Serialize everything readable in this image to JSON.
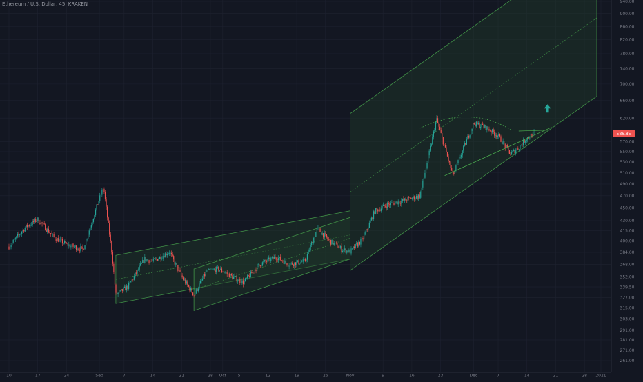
{
  "header": {
    "symbol_title": "Ethereum / U.S. Dollar, 45, KRAKEN"
  },
  "colors": {
    "background": "#131722",
    "grid": "#1e2230",
    "up": "#26a69a",
    "down": "#ef5350",
    "channel_stroke": "#4caf50",
    "channel_fill": "#1f3a2a",
    "axis_text": "#787b86",
    "price_badge": "#ef5350",
    "arrow": "#26a69a"
  },
  "price_axis": {
    "ticks": [
      "940.00",
      "900.00",
      "860.00",
      "820.00",
      "780.00",
      "740.00",
      "700.00",
      "660.00",
      "620.00",
      "590.00",
      "570.00",
      "550.00",
      "530.00",
      "510.00",
      "490.00",
      "470.00",
      "450.00",
      "430.00",
      "415.00",
      "400.00",
      "384.00",
      "368.00",
      "352.00",
      "339.50",
      "327.00",
      "315.00",
      "303.00",
      "291.00",
      "281.00",
      "271.00",
      "261.00"
    ],
    "current_price": "586.85"
  },
  "time_axis": {
    "ticks": [
      "10",
      "17",
      "24",
      "Sep",
      "7",
      "14",
      "21",
      "28",
      "Oct",
      "5",
      "12",
      "19",
      "26",
      "Nov",
      "9",
      "16",
      "23",
      "Dec",
      "7",
      "14",
      "21",
      "28",
      "2021"
    ]
  },
  "chart_data": {
    "type": "candlestick",
    "title": "Ethereum / U.S. Dollar, 45, KRAKEN",
    "xlabel": "",
    "ylabel": "",
    "y_scale": "log",
    "ylim": [
      261,
      940
    ],
    "price_path": [
      [
        "Aug 10",
        392
      ],
      [
        "Aug 14",
        420
      ],
      [
        "Aug 17",
        432
      ],
      [
        "Aug 21",
        405
      ],
      [
        "Aug 24",
        395
      ],
      [
        "Aug 28",
        388
      ],
      [
        "Aug 31",
        445
      ],
      [
        "Sep 2",
        485
      ],
      [
        "Sep 4",
        385
      ],
      [
        "Sep 5",
        330
      ],
      [
        "Sep 8",
        340
      ],
      [
        "Sep 12",
        375
      ],
      [
        "Sep 14",
        372
      ],
      [
        "Sep 18",
        385
      ],
      [
        "Sep 21",
        352
      ],
      [
        "Sep 24",
        330
      ],
      [
        "Sep 27",
        358
      ],
      [
        "Sep 30",
        362
      ],
      [
        "Oct 3",
        353
      ],
      [
        "Oct 6",
        345
      ],
      [
        "Oct 10",
        368
      ],
      [
        "Oct 14",
        378
      ],
      [
        "Oct 17",
        368
      ],
      [
        "Oct 21",
        372
      ],
      [
        "Oct 24",
        418
      ],
      [
        "Oct 27",
        400
      ],
      [
        "Oct 30",
        388
      ],
      [
        "Nov 1",
        385
      ],
      [
        "Nov 4",
        402
      ],
      [
        "Nov 7",
        445
      ],
      [
        "Nov 10",
        455
      ],
      [
        "Nov 14",
        462
      ],
      [
        "Nov 18",
        470
      ],
      [
        "Nov 22",
        618
      ],
      [
        "Nov 26",
        505
      ],
      [
        "Nov 28",
        545
      ],
      [
        "Dec 1",
        608
      ],
      [
        "Dec 4",
        600
      ],
      [
        "Dec 7",
        582
      ],
      [
        "Dec 10",
        545
      ],
      [
        "Dec 12",
        558
      ],
      [
        "Dec 14",
        578
      ],
      [
        "Dec 16",
        587
      ]
    ],
    "channels": [
      {
        "name": "",
        "from": [
          "Sep 5",
          320
        ],
        "to": [
          "Nov 1",
          375
        ],
        "upper_offset": 60
      },
      {
        "name": "",
        "from": [
          "Sep 24",
          312
        ],
        "to": [
          "Nov 1",
          375
        ],
        "upper_offset": 50
      },
      {
        "name": "",
        "from": [
          "Nov 1",
          360
        ],
        "to": [
          "Dec 31",
          670
        ],
        "upper_offset": 270
      }
    ],
    "annotations": [
      "up-arrow"
    ],
    "grid": true,
    "legend": "none"
  }
}
